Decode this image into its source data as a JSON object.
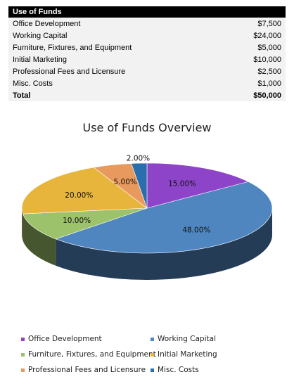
{
  "table": {
    "header": "Use of Funds",
    "rows": [
      {
        "label": "Office Development",
        "amount": "$7,500"
      },
      {
        "label": "Working Capital",
        "amount": "$24,000"
      },
      {
        "label": "Furniture, Fixtures, and Equipment",
        "amount": "$5,000"
      },
      {
        "label": "Initial Marketing",
        "amount": "$10,000"
      },
      {
        "label": "Professional Fees and Licensure",
        "amount": "$2,500"
      },
      {
        "label": "Misc. Costs",
        "amount": "$1,000"
      }
    ],
    "total": {
      "label": "Total",
      "amount": "$50,000"
    }
  },
  "chart_data": {
    "type": "pie",
    "title": "Use of Funds Overview",
    "categories": [
      "Office Development",
      "Working Capital",
      "Furniture, Fixtures, and Equipment",
      "Initial Marketing",
      "Professional Fees and Licensure",
      "Misc. Costs"
    ],
    "values": [
      15.0,
      48.0,
      10.0,
      20.0,
      5.0,
      2.0
    ],
    "data_labels": [
      "15.00%",
      "48.00%",
      "10.00%",
      "20.00%",
      "5.00%",
      "2.00%"
    ],
    "colors": [
      "#8e44c9",
      "#4f86c0",
      "#9cc26b",
      "#e7b53c",
      "#e89a5e",
      "#2a6ead"
    ],
    "legend_position": "bottom",
    "style": "3d"
  }
}
